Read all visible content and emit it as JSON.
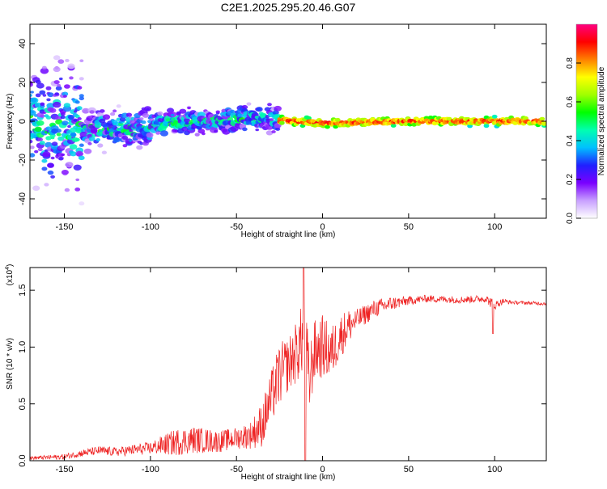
{
  "title": "C2E1.2025.295.20.46.G07",
  "chart_data": [
    {
      "type": "heatmap",
      "title": "C2E1.2025.295.20.46.G07",
      "xlabel": "Height of straight line (km)",
      "ylabel": "Frequency (Hz)",
      "xlim": [
        -170,
        130
      ],
      "ylim": [
        -50,
        50
      ],
      "x_ticks": [
        -150,
        -100,
        -50,
        0,
        50,
        100
      ],
      "x_tick_labels": [
        "-150",
        "-100",
        "-50",
        "0",
        "50",
        "100"
      ],
      "y_ticks": [
        -40,
        -20,
        0,
        20,
        40
      ],
      "y_tick_labels": [
        "-40",
        "-20",
        "0",
        "20",
        "40"
      ],
      "colorbar": {
        "label": "Normalized spectral amplitude",
        "range": [
          0,
          1
        ],
        "ticks": [
          0.0,
          0.2,
          0.4,
          0.6,
          0.8
        ],
        "tick_labels": [
          "0.0",
          "0.2",
          "0.4",
          "0.6",
          "0.8"
        ],
        "colormap": [
          "#ffffff",
          "#c8a0ff",
          "#7a00ff",
          "#2020ff",
          "#00c0ff",
          "#00ffb0",
          "#00ff00",
          "#a0ff00",
          "#ffff00",
          "#ff8000",
          "#ff0000",
          "#ff0080"
        ]
      },
      "band_center": [
        {
          "x": -165,
          "y": -4
        },
        {
          "x": -150,
          "y": -3
        },
        {
          "x": -130,
          "y": -4
        },
        {
          "x": -110,
          "y": -4
        },
        {
          "x": -90,
          "y": -1
        },
        {
          "x": -70,
          "y": 0
        },
        {
          "x": -50,
          "y": 1
        },
        {
          "x": -35,
          "y": 2
        },
        {
          "x": -25,
          "y": 0.5
        },
        {
          "x": 0,
          "y": -1
        },
        {
          "x": 50,
          "y": 0
        },
        {
          "x": 100,
          "y": 0
        },
        {
          "x": 130,
          "y": 0
        }
      ]
    },
    {
      "type": "line",
      "xlabel": "Height of straight line (km)",
      "ylabel": "SNR (10 * v/v)",
      "y_scale_label": "(x10",
      "y_scale_exponent": "4",
      "y_scale": 10000,
      "xlim": [
        -170,
        130
      ],
      "ylim": [
        0,
        1.7
      ],
      "x_ticks": [
        -150,
        -100,
        -50,
        0,
        50,
        100
      ],
      "x_tick_labels": [
        "-150",
        "-100",
        "-50",
        "0",
        "50",
        "100"
      ],
      "y_ticks": [
        0.0,
        0.5,
        1.0,
        1.5
      ],
      "y_tick_labels": [
        "0.0",
        "0.5",
        "1.0",
        "1.5"
      ],
      "series": [
        {
          "name": "SNR",
          "color": "#ee2222",
          "x": [
            -170,
            -150,
            -140,
            -130,
            -120,
            -100,
            -85,
            -75,
            -60,
            -50,
            -42,
            -35,
            -30,
            -25,
            -20,
            -15,
            -12,
            -10,
            -8,
            -5,
            0,
            5,
            10,
            15,
            20,
            30,
            40,
            50,
            60,
            80,
            95,
            98,
            100,
            105,
            110,
            130
          ],
          "y": [
            0.02,
            0.03,
            0.06,
            0.08,
            0.07,
            0.1,
            0.14,
            0.16,
            0.15,
            0.18,
            0.2,
            0.28,
            0.5,
            0.7,
            0.8,
            0.9,
            1.0,
            1.02,
            0.6,
            0.9,
            0.95,
            0.9,
            1.05,
            1.15,
            1.22,
            1.32,
            1.37,
            1.4,
            1.42,
            1.41,
            1.42,
            1.38,
            1.36,
            1.4,
            1.39,
            1.38
          ],
          "spread": [
            0.02,
            0.03,
            0.04,
            0.05,
            0.05,
            0.07,
            0.15,
            0.15,
            0.12,
            0.12,
            0.15,
            0.25,
            0.3,
            0.35,
            0.3,
            0.35,
            0.4,
            0.6,
            0.4,
            0.35,
            0.35,
            0.3,
            0.25,
            0.2,
            0.12,
            0.1,
            0.08,
            0.05,
            0.04,
            0.04,
            0.04,
            0.06,
            0.05,
            0.03,
            0.02,
            0.02
          ]
        }
      ]
    }
  ]
}
